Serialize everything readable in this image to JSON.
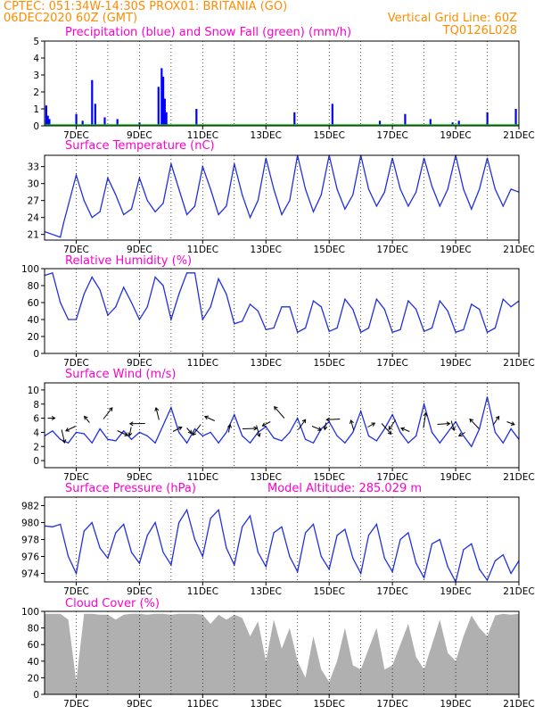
{
  "header": {
    "line1": "CPTEC:  051:34W-14:30S  PROX01: BRITANIA (GO)",
    "line2_left": "06DEC2020 60Z (GMT)",
    "line2_right": "Vertical Grid Line: 60Z",
    "line3_right": "TQ0126L028"
  },
  "colors": {
    "precip": "#0000ff",
    "snow": "#00c000",
    "line": "#2030e0",
    "cloud": "#b0b0b0",
    "header": "#ff8c00",
    "title": "#ff00cc"
  },
  "x_ticks": [
    "7DEC",
    "9DEC",
    "11DEC",
    "13DEC",
    "15DEC",
    "17DEC",
    "19DEC",
    "21DEC"
  ],
  "panels": {
    "precip": {
      "title": "Precipitation (blue) and Snow Fall (green) (mm/h)",
      "yticks": [
        "0",
        "1",
        "2",
        "3",
        "4",
        "5"
      ]
    },
    "temp": {
      "title": "Surface Temperature (nC)",
      "yticks": [
        "21",
        "24",
        "27",
        "30",
        "33"
      ]
    },
    "rh": {
      "title": "Relative Humidity (%)",
      "yticks": [
        "0",
        "20",
        "40",
        "60",
        "80",
        "100"
      ]
    },
    "wind": {
      "title": "Surface Wind (m/s)",
      "yticks": [
        "0",
        "2",
        "4",
        "6",
        "8",
        "10"
      ]
    },
    "pres": {
      "title": "Surface Pressure (hPa)",
      "extra": "Model Altitude: 285.029 m",
      "yticks": [
        "974",
        "976",
        "978",
        "980",
        "982"
      ]
    },
    "cloud": {
      "title": "Cloud Cover (%)",
      "yticks": [
        "0",
        "20",
        "40",
        "60",
        "80",
        "100"
      ]
    }
  },
  "chart_data": [
    {
      "type": "bar",
      "title": "Precipitation (blue) and Snow Fall (green) (mm/h)",
      "x_unit": "day of Dec 2020",
      "ylim": [
        0,
        5
      ],
      "x": [
        6.05,
        6.1,
        6.15,
        7.0,
        7.2,
        7.5,
        7.6,
        7.9,
        8.3,
        9.0,
        9.6,
        9.7,
        9.75,
        9.8,
        9.85,
        10.8,
        13.9,
        15.1,
        16.6,
        17.4,
        18.2,
        18.9,
        19.1,
        20.0,
        20.9
      ],
      "values": [
        1.2,
        0.6,
        0.4,
        0.7,
        0.3,
        2.7,
        1.3,
        0.5,
        0.4,
        0.2,
        2.3,
        3.4,
        2.9,
        1.6,
        0.8,
        1.0,
        0.8,
        1.3,
        0.3,
        0.7,
        0.4,
        0.2,
        0.3,
        0.8,
        1.0
      ],
      "snow": 0
    },
    {
      "type": "line",
      "title": "Surface Temperature (nC)",
      "x_unit": "day of Dec 2020",
      "ylim": [
        20,
        35
      ],
      "x": [
        6.0,
        6.25,
        6.5,
        6.6,
        7.0,
        7.25,
        7.5,
        7.75,
        8.0,
        8.25,
        8.5,
        8.75,
        9.0,
        9.25,
        9.5,
        9.75,
        10.0,
        10.25,
        10.5,
        10.75,
        11.0,
        11.25,
        11.5,
        11.75,
        12.0,
        12.25,
        12.5,
        12.75,
        13.0,
        13.25,
        13.5,
        13.75,
        14.0,
        14.25,
        14.5,
        14.75,
        15.0,
        15.25,
        15.5,
        15.75,
        16.0,
        16.25,
        16.5,
        16.75,
        17.0,
        17.25,
        17.5,
        17.75,
        18.0,
        18.25,
        18.5,
        18.75,
        19.0,
        19.25,
        19.5,
        19.75,
        20.0,
        20.25,
        20.5,
        20.75,
        21.0
      ],
      "values": [
        21.5,
        21.0,
        20.5,
        23,
        31.5,
        27,
        24,
        25,
        31,
        28,
        24.5,
        25.5,
        31,
        27,
        25,
        26.5,
        33.5,
        29,
        24.5,
        26,
        33,
        29,
        24.5,
        26,
        33.5,
        28,
        24,
        27,
        34.5,
        29,
        24.5,
        27,
        35,
        29,
        25,
        28,
        35,
        29,
        25.5,
        28,
        35,
        29,
        26,
        28.5,
        34.5,
        29,
        26,
        28.5,
        34.5,
        29.5,
        26,
        29,
        35,
        29,
        25.5,
        29,
        34.5,
        29,
        26,
        29,
        28.5
      ]
    },
    {
      "type": "line",
      "title": "Relative Humidity (%)",
      "x_unit": "day of Dec 2020",
      "ylim": [
        0,
        100
      ],
      "x": [
        6.0,
        6.25,
        6.5,
        6.75,
        7.0,
        7.25,
        7.5,
        7.75,
        8.0,
        8.25,
        8.5,
        8.75,
        9.0,
        9.25,
        9.5,
        9.75,
        10.0,
        10.25,
        10.5,
        10.75,
        11.0,
        11.25,
        11.5,
        11.75,
        12.0,
        12.25,
        12.5,
        12.75,
        13.0,
        13.25,
        13.5,
        13.75,
        14.0,
        14.25,
        14.5,
        14.75,
        15.0,
        15.25,
        15.5,
        15.75,
        16.0,
        16.25,
        16.5,
        16.75,
        17.0,
        17.25,
        17.5,
        17.75,
        18.0,
        18.25,
        18.5,
        18.75,
        19.0,
        19.25,
        19.5,
        19.75,
        20.0,
        20.25,
        20.5,
        20.75,
        21.0
      ],
      "values": [
        92,
        95,
        60,
        40,
        40,
        70,
        90,
        75,
        45,
        55,
        78,
        60,
        40,
        55,
        90,
        80,
        40,
        70,
        95,
        95,
        40,
        55,
        88,
        70,
        35,
        38,
        58,
        50,
        28,
        30,
        55,
        55,
        25,
        30,
        62,
        55,
        26,
        30,
        64,
        52,
        25,
        30,
        64,
        52,
        25,
        28,
        62,
        52,
        26,
        30,
        62,
        50,
        25,
        28,
        58,
        52,
        25,
        30,
        64,
        55,
        62
      ]
    },
    {
      "type": "line",
      "title": "Surface Wind (m/s)",
      "x_unit": "day of Dec 2020",
      "ylim": [
        0,
        10
      ],
      "x": [
        6.0,
        6.25,
        6.5,
        6.75,
        7.0,
        7.25,
        7.5,
        7.75,
        8.0,
        8.25,
        8.5,
        8.75,
        9.0,
        9.25,
        9.5,
        9.75,
        10.0,
        10.25,
        10.5,
        10.75,
        11.0,
        11.25,
        11.5,
        11.75,
        12.0,
        12.25,
        12.5,
        12.75,
        13.0,
        13.25,
        13.5,
        13.75,
        14.0,
        14.25,
        14.5,
        14.75,
        15.0,
        15.25,
        15.5,
        15.75,
        16.0,
        16.25,
        16.5,
        16.75,
        17.0,
        17.25,
        17.5,
        17.75,
        18.0,
        18.25,
        18.5,
        18.75,
        19.0,
        19.25,
        19.5,
        19.75,
        20.0,
        20.25,
        20.5,
        20.75,
        21.0
      ],
      "values": [
        3.5,
        4.2,
        3.0,
        2.5,
        4.0,
        3.8,
        2.5,
        4.5,
        3.0,
        2.8,
        4.2,
        3.0,
        4.0,
        3.5,
        2.5,
        5.0,
        7.5,
        4.0,
        2.5,
        4.5,
        3.5,
        4.0,
        2.5,
        4.0,
        6.5,
        3.5,
        2.5,
        4.0,
        4.8,
        3.2,
        2.8,
        4.0,
        6.0,
        3.0,
        2.5,
        4.5,
        5.5,
        3.5,
        2.5,
        4.0,
        7.0,
        3.5,
        2.8,
        4.5,
        6.5,
        4.0,
        2.5,
        3.5,
        8.0,
        4.0,
        2.5,
        4.0,
        5.5,
        3.5,
        2.0,
        4.5,
        9.0,
        4.0,
        2.5,
        4.5,
        3.0
      ]
    },
    {
      "type": "line",
      "title": "Surface Pressure (hPa)",
      "x_unit": "day of Dec 2020",
      "ylim": [
        973,
        983
      ],
      "x": [
        6.0,
        6.25,
        6.5,
        6.75,
        7.0,
        7.25,
        7.5,
        7.75,
        8.0,
        8.25,
        8.5,
        8.75,
        9.0,
        9.25,
        9.5,
        9.75,
        10.0,
        10.25,
        10.5,
        10.75,
        11.0,
        11.25,
        11.5,
        11.75,
        12.0,
        12.25,
        12.5,
        12.75,
        13.0,
        13.25,
        13.5,
        13.75,
        14.0,
        14.25,
        14.5,
        14.75,
        15.0,
        15.25,
        15.5,
        15.75,
        16.0,
        16.25,
        16.5,
        16.75,
        17.0,
        17.25,
        17.5,
        17.75,
        18.0,
        18.25,
        18.5,
        18.75,
        19.0,
        19.25,
        19.5,
        19.75,
        20.0,
        20.25,
        20.5,
        20.75,
        21.0
      ],
      "values": [
        979.6,
        979.5,
        979.8,
        976.0,
        974.0,
        979.0,
        980.0,
        977.0,
        975.8,
        978.8,
        979.8,
        976.5,
        975.2,
        978.5,
        980.0,
        976.5,
        975.0,
        980.0,
        981.5,
        978.0,
        976.0,
        980.5,
        981.5,
        977.0,
        975.0,
        979.5,
        980.8,
        976.5,
        974.8,
        978.8,
        979.5,
        976.0,
        974.2,
        978.8,
        979.8,
        976.0,
        974.5,
        978.5,
        979.2,
        975.8,
        974.0,
        978.5,
        979.8,
        975.8,
        974.2,
        978.0,
        978.8,
        975.2,
        973.5,
        977.5,
        978.0,
        974.8,
        973.0,
        976.8,
        977.5,
        974.5,
        973.2,
        975.5,
        976.2,
        974.0,
        975.5
      ]
    },
    {
      "type": "area",
      "title": "Cloud Cover (%)",
      "x_unit": "day of Dec 2020",
      "ylim": [
        0,
        100
      ],
      "x": [
        6.0,
        6.25,
        6.5,
        6.75,
        7.0,
        7.25,
        7.5,
        7.75,
        8.0,
        8.25,
        8.5,
        8.75,
        9.0,
        9.25,
        9.5,
        9.75,
        10.0,
        10.25,
        10.5,
        10.75,
        11.0,
        11.25,
        11.5,
        11.75,
        12.0,
        12.25,
        12.5,
        12.75,
        13.0,
        13.25,
        13.5,
        13.75,
        14.0,
        14.25,
        14.5,
        14.75,
        15.0,
        15.25,
        15.5,
        15.75,
        16.0,
        16.25,
        16.5,
        16.75,
        17.0,
        17.25,
        17.5,
        17.75,
        18.0,
        18.25,
        18.5,
        18.75,
        19.0,
        19.25,
        19.5,
        19.75,
        20.0,
        20.25,
        20.5,
        20.75,
        21.0
      ],
      "values": [
        97,
        97,
        97,
        90,
        15,
        97,
        97,
        96,
        96,
        90,
        96,
        97,
        97,
        96,
        97,
        97,
        96,
        97,
        97,
        97,
        96,
        85,
        96,
        90,
        96,
        92,
        70,
        88,
        40,
        90,
        55,
        80,
        40,
        20,
        70,
        30,
        15,
        40,
        80,
        35,
        30,
        55,
        80,
        30,
        35,
        60,
        85,
        45,
        30,
        60,
        90,
        50,
        40,
        70,
        95,
        80,
        70,
        95,
        97,
        96,
        97
      ]
    }
  ]
}
